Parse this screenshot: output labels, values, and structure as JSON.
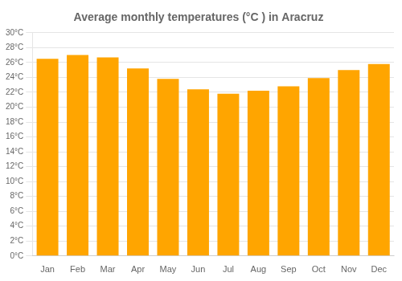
{
  "chart_data": {
    "type": "bar",
    "title": "Average monthly temperatures (°C ) in Aracruz",
    "categories": [
      "Jan",
      "Feb",
      "Mar",
      "Apr",
      "May",
      "Jun",
      "Jul",
      "Aug",
      "Sep",
      "Oct",
      "Nov",
      "Dec"
    ],
    "values": [
      26.5,
      27.0,
      26.7,
      25.2,
      23.8,
      22.4,
      21.8,
      22.2,
      22.8,
      23.9,
      25.0,
      25.8
    ],
    "color": "#FFA500",
    "ylim": [
      0,
      30
    ],
    "yticks": [
      {
        "value": 0,
        "label": "0°C"
      },
      {
        "value": 2,
        "label": "2°C"
      },
      {
        "value": 4,
        "label": "4°C"
      },
      {
        "value": 6,
        "label": "6°C"
      },
      {
        "value": 8,
        "label": "8°C"
      },
      {
        "value": 10,
        "label": "10°C"
      },
      {
        "value": 12,
        "label": "12°C"
      },
      {
        "value": 14,
        "label": "14°C"
      },
      {
        "value": 16,
        "label": "16°C"
      },
      {
        "value": 18,
        "label": "18°C"
      },
      {
        "value": 20,
        "label": "20°C"
      },
      {
        "value": 22,
        "label": "22°C"
      },
      {
        "value": 24,
        "label": "24°C"
      },
      {
        "value": 26,
        "label": "26°C"
      },
      {
        "value": 28,
        "label": "28°C"
      },
      {
        "value": 30,
        "label": "30°C"
      }
    ],
    "grid": true
  }
}
